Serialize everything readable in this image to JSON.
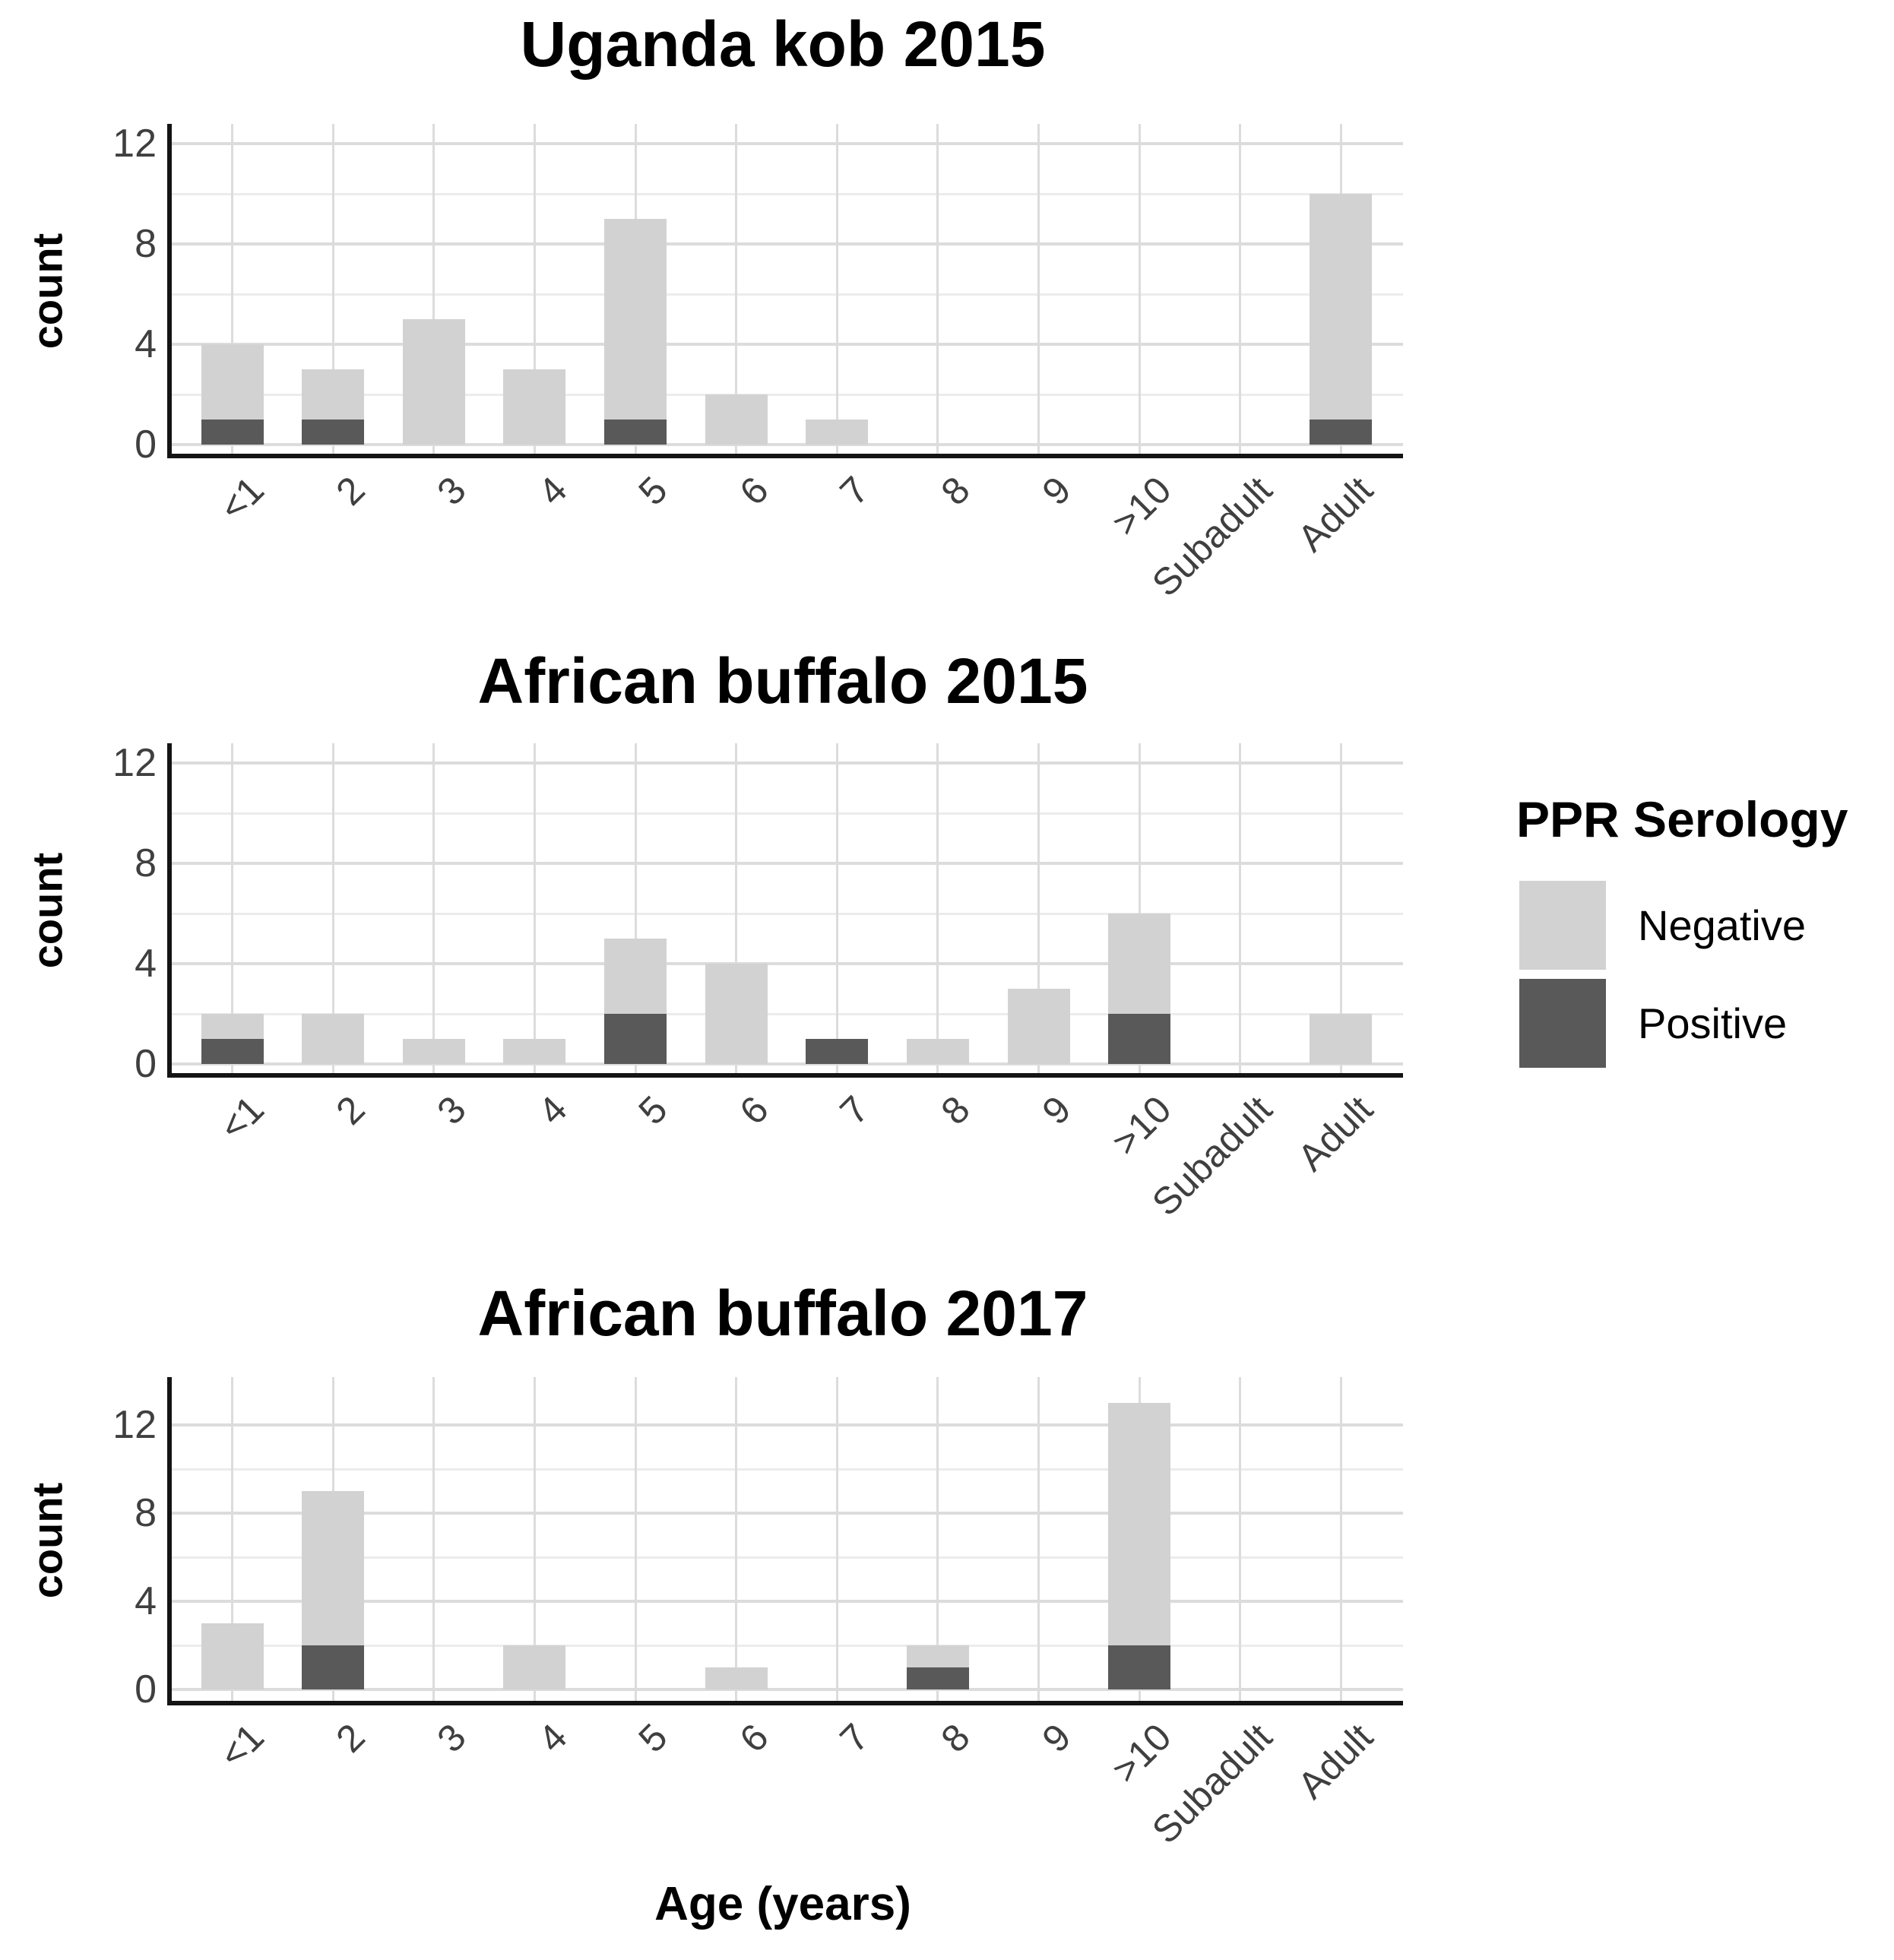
{
  "figure": {
    "y_axis_label": "count",
    "x_axis_label": "Age (years)",
    "colors": {
      "negative": "#d2d2d2",
      "positive": "#595959",
      "grid_major": "#dcdcdc",
      "grid_minor": "#ececec",
      "axis_line": "#141414",
      "tick_text": "#3f3f3f"
    }
  },
  "legend": {
    "title": "PPR Serology",
    "items": [
      {
        "label": "Negative",
        "color": "#d2d2d2"
      },
      {
        "label": "Positive",
        "color": "#595959"
      }
    ]
  },
  "chart_data": [
    {
      "type": "bar",
      "stacked": true,
      "stack_order_bottom_to_top": [
        "Positive",
        "Negative"
      ],
      "title": "Uganda kob 2015",
      "xlabel": "Age (years)",
      "ylabel": "count",
      "categories": [
        "<1",
        "2",
        "3",
        "4",
        "5",
        "6",
        "7",
        "8",
        "9",
        ">10",
        "Subadult",
        "Adult"
      ],
      "series": [
        {
          "name": "Positive",
          "values": [
            1,
            1,
            0,
            0,
            1,
            0,
            0,
            0,
            0,
            0,
            0,
            1
          ]
        },
        {
          "name": "Negative",
          "values": [
            3,
            2,
            5,
            3,
            8,
            2,
            1,
            0,
            0,
            0,
            0,
            9
          ]
        }
      ],
      "totals": [
        4,
        3,
        5,
        3,
        9,
        2,
        1,
        0,
        0,
        0,
        0,
        10
      ],
      "yticks": [
        0,
        4,
        8,
        12
      ],
      "ylim": [
        0,
        13
      ],
      "grid": "major and minor horizontal every 2, vertical at each category",
      "legend_position": "right"
    },
    {
      "type": "bar",
      "stacked": true,
      "stack_order_bottom_to_top": [
        "Positive",
        "Negative"
      ],
      "title": "African buffalo 2015",
      "xlabel": "Age (years)",
      "ylabel": "count",
      "categories": [
        "<1",
        "2",
        "3",
        "4",
        "5",
        "6",
        "7",
        "8",
        "9",
        ">10",
        "Subadult",
        "Adult"
      ],
      "series": [
        {
          "name": "Positive",
          "values": [
            1,
            0,
            0,
            0,
            2,
            0,
            1,
            0,
            0,
            2,
            0,
            0
          ]
        },
        {
          "name": "Negative",
          "values": [
            1,
            2,
            1,
            1,
            3,
            4,
            0,
            1,
            3,
            4,
            0,
            2
          ]
        }
      ],
      "totals": [
        2,
        2,
        1,
        1,
        5,
        4,
        1,
        1,
        3,
        6,
        0,
        2
      ],
      "yticks": [
        0,
        4,
        8,
        12
      ],
      "ylim": [
        0,
        13
      ],
      "grid": "major and minor horizontal every 2, vertical at each category",
      "legend_position": "right"
    },
    {
      "type": "bar",
      "stacked": true,
      "stack_order_bottom_to_top": [
        "Positive",
        "Negative"
      ],
      "title": "African buffalo 2017",
      "xlabel": "Age (years)",
      "ylabel": "count",
      "categories": [
        "<1",
        "2",
        "3",
        "4",
        "5",
        "6",
        "7",
        "8",
        "9",
        ">10",
        "Subadult",
        "Adult"
      ],
      "series": [
        {
          "name": "Positive",
          "values": [
            0,
            2,
            0,
            0,
            0,
            0,
            0,
            1,
            0,
            2,
            0,
            0
          ]
        },
        {
          "name": "Negative",
          "values": [
            3,
            7,
            0,
            2,
            0,
            1,
            0,
            1,
            0,
            11,
            0,
            0
          ]
        }
      ],
      "totals": [
        3,
        9,
        0,
        2,
        0,
        1,
        0,
        2,
        0,
        13,
        0,
        0
      ],
      "yticks": [
        0,
        4,
        8,
        12
      ],
      "ylim": [
        0,
        13
      ],
      "grid": "major and minor horizontal every 2, vertical at each category",
      "legend_position": "right"
    }
  ]
}
